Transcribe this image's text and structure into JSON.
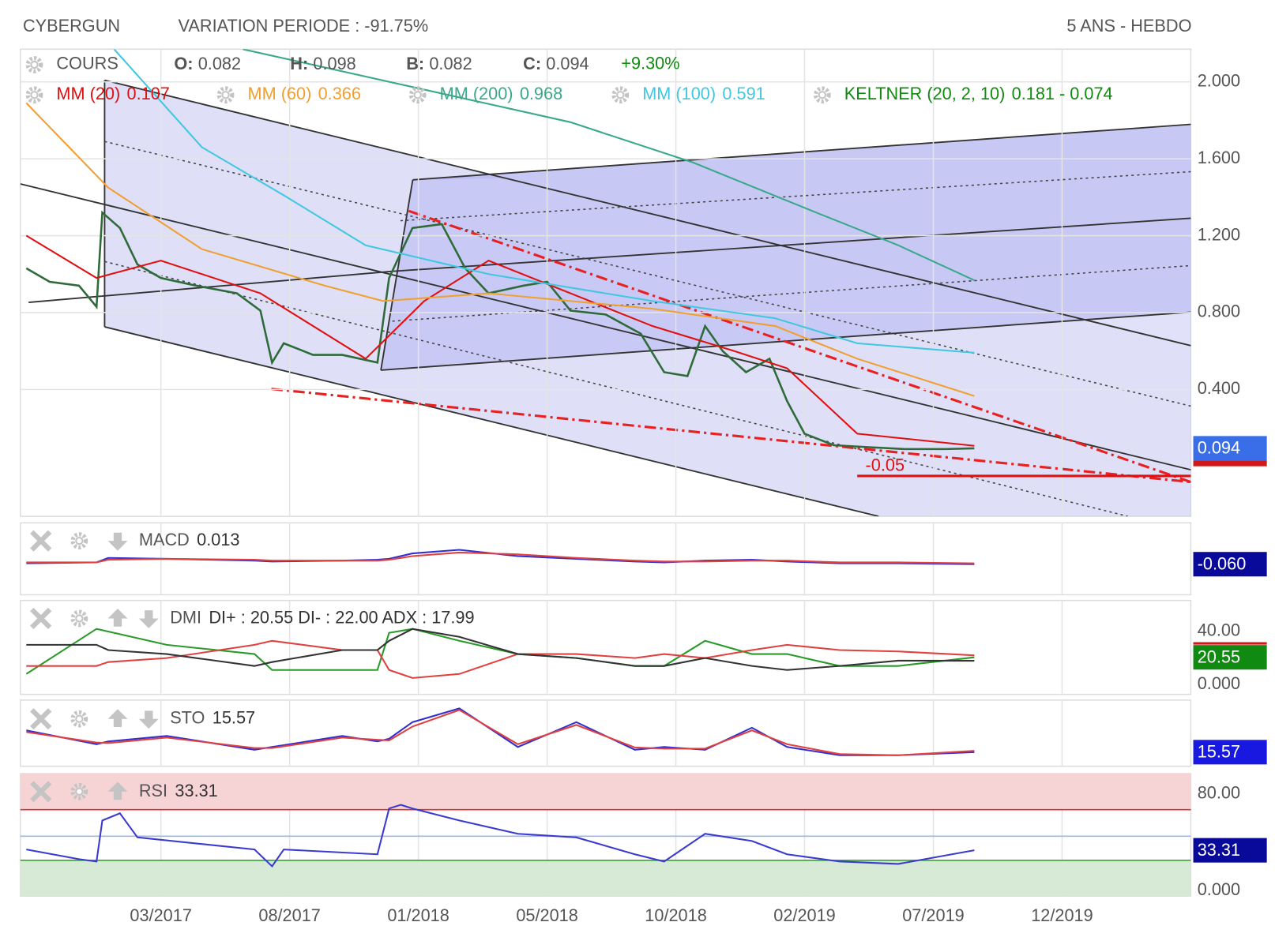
{
  "chart_data": [
    {
      "type": "line",
      "title": "CYBERGUN",
      "subtitle": "VARIATION PERIODE : -91.75%",
      "period": "5 ANS - HEBDO",
      "quotes": [
        {
          "key": "O:",
          "value": "0.082"
        },
        {
          "key": "H:",
          "value": "0.098"
        },
        {
          "key": "B:",
          "value": "0.082"
        },
        {
          "key": "C:",
          "value": "0.094"
        }
      ],
      "change": "+9.30%",
      "xlim": [
        0,
        200
      ],
      "xticks": [
        {
          "value": 24,
          "label": "03/2017"
        },
        {
          "value": 46,
          "label": "08/2017"
        },
        {
          "value": 68,
          "label": "01/2018"
        },
        {
          "value": 90,
          "label": "05/2018"
        },
        {
          "value": 112,
          "label": "10/2018"
        },
        {
          "value": 134,
          "label": "02/2019"
        },
        {
          "value": 156,
          "label": "07/2019"
        },
        {
          "value": 178,
          "label": "12/2019"
        }
      ],
      "ylim": [
        -0.26,
        2.17
      ],
      "yticks": [
        {
          "value": 0.4,
          "label": "0.400"
        },
        {
          "value": 0.8,
          "label": "0.800"
        },
        {
          "value": 1.2,
          "label": "1.200"
        },
        {
          "value": 1.6,
          "label": "1.600"
        },
        {
          "value": 2.0,
          "label": "2.000"
        }
      ],
      "grid": true,
      "series": [
        {
          "name": "COURS",
          "color": "#2f6b3a",
          "x": [
            1,
            5,
            10,
            13,
            14,
            17,
            20,
            24,
            30,
            37,
            41,
            43,
            45,
            50,
            55,
            61,
            63,
            65,
            67,
            72,
            76,
            80,
            86,
            90,
            94,
            100,
            106,
            110,
            114,
            117,
            120,
            124,
            128,
            131,
            134,
            139,
            145,
            151,
            158,
            163
          ],
          "values": [
            1.03,
            0.96,
            0.94,
            0.83,
            1.32,
            1.24,
            1.05,
            0.98,
            0.94,
            0.9,
            0.81,
            0.54,
            0.64,
            0.58,
            0.58,
            0.54,
            0.98,
            1.11,
            1.24,
            1.26,
            1.03,
            0.9,
            0.94,
            0.96,
            0.81,
            0.79,
            0.69,
            0.49,
            0.47,
            0.73,
            0.6,
            0.49,
            0.56,
            0.34,
            0.17,
            0.11,
            0.1,
            0.09,
            0.09,
            0.094
          ]
        },
        {
          "name": "MM (20)",
          "legend_value": "0.107",
          "color": "#e01010",
          "x": [
            1,
            13,
            24,
            41,
            59,
            69,
            80,
            94,
            108,
            122,
            131,
            143,
            163
          ],
          "values": [
            1.2,
            0.98,
            1.07,
            0.9,
            0.56,
            0.86,
            1.07,
            0.9,
            0.73,
            0.6,
            0.51,
            0.17,
            0.107
          ]
        },
        {
          "name": "MM (60)",
          "legend_value": "0.366",
          "color": "#f0a030",
          "x": [
            1,
            15,
            31,
            52,
            62,
            80,
            108,
            129,
            143,
            163
          ],
          "values": [
            1.89,
            1.45,
            1.13,
            0.94,
            0.86,
            0.9,
            0.82,
            0.73,
            0.56,
            0.366
          ]
        },
        {
          "name": "MM (200)",
          "legend_value": "0.968",
          "color": "#3aa88a",
          "x": [
            38,
            66,
            94,
            115,
            136,
            150,
            163
          ],
          "values": [
            2.17,
            1.98,
            1.79,
            1.58,
            1.32,
            1.15,
            0.968
          ]
        },
        {
          "name": "MM (100)",
          "legend_value": "0.591",
          "color": "#40c8e0",
          "x": [
            16,
            31,
            45,
            59,
            80,
            108,
            129,
            143,
            163
          ],
          "values": [
            2.17,
            1.66,
            1.41,
            1.15,
            1.0,
            0.86,
            0.77,
            0.64,
            0.591
          ]
        }
      ],
      "keltner": {
        "name": "KELTNER (20, 2, 10)",
        "value": "0.181 - 0.074",
        "color": "#108a10"
      },
      "annotation": {
        "label": "-0.05",
        "value": -0.05,
        "x_start": 143,
        "color": "#e01010"
      }
    },
    {
      "type": "line",
      "title": "MACD",
      "header_value": "0.013",
      "x": [
        1,
        13,
        15,
        25,
        40,
        43,
        55,
        61,
        63,
        67,
        75,
        85,
        95,
        105,
        110,
        117,
        125,
        131,
        140,
        150,
        163
      ],
      "ylim": [
        -0.4,
        0.4
      ],
      "series": [
        {
          "color": "#3030d0",
          "values": [
            -0.05,
            -0.04,
            0.01,
            0,
            -0.02,
            -0.03,
            -0.02,
            -0.01,
            0.0,
            0.06,
            0.1,
            0.03,
            0.0,
            -0.03,
            -0.04,
            -0.02,
            -0.01,
            -0.03,
            -0.05,
            -0.05,
            -0.06
          ]
        },
        {
          "color": "#e04040",
          "values": [
            -0.04,
            -0.04,
            -0.01,
            0,
            -0.01,
            -0.02,
            -0.02,
            -0.02,
            -0.01,
            0.03,
            0.07,
            0.05,
            0.01,
            -0.02,
            -0.03,
            -0.03,
            -0.02,
            -0.02,
            -0.04,
            -0.04,
            -0.05
          ]
        }
      ],
      "current": {
        "value": -0.06,
        "label": "-0.060"
      }
    },
    {
      "type": "line",
      "title": "DMI",
      "header_value": "DI+ : 20.55 DI- : 22.00 ADX : 17.99",
      "x": [
        1,
        13,
        15,
        25,
        40,
        43,
        55,
        61,
        63,
        67,
        75,
        85,
        95,
        105,
        110,
        117,
        125,
        131,
        140,
        150,
        163
      ],
      "ylim": [
        -7.4,
        63.4
      ],
      "yticks": [
        {
          "value": 0,
          "label": "0.000"
        },
        {
          "value": 40,
          "label": "40.00"
        }
      ],
      "series": [
        {
          "name": "DI+",
          "color": "#2a9a2a",
          "values": [
            8,
            42,
            40,
            30,
            23,
            11,
            11,
            11,
            39,
            42,
            33,
            23,
            20,
            14,
            14,
            33,
            23,
            23,
            14,
            14,
            20.55
          ]
        },
        {
          "name": "DI-",
          "color": "#e04040",
          "values": [
            14,
            14,
            17,
            20,
            30,
            33,
            26,
            26,
            11,
            5,
            8,
            23,
            23,
            20,
            23,
            20,
            26,
            30,
            26,
            25,
            22
          ]
        },
        {
          "name": "ADX",
          "color": "#333333",
          "values": [
            30,
            30,
            26,
            23,
            14,
            17,
            26,
            26,
            33,
            42,
            36,
            23,
            20,
            14,
            14,
            20,
            14,
            11,
            14,
            18,
            17.99
          ]
        }
      ]
    },
    {
      "type": "line",
      "title": "STO",
      "header_value": "15.57",
      "x": [
        1,
        13,
        15,
        25,
        40,
        43,
        55,
        61,
        63,
        67,
        75,
        85,
        95,
        105,
        110,
        117,
        125,
        131,
        140,
        150,
        163
      ],
      "ylim": [
        -10,
        110
      ],
      "series": [
        {
          "color": "#3030d0",
          "values": [
            55,
            30,
            35,
            45,
            20,
            25,
            45,
            35,
            40,
            70,
            95,
            25,
            70,
            20,
            25,
            20,
            60,
            25,
            10,
            10,
            15.57
          ]
        },
        {
          "color": "#e04040",
          "values": [
            52,
            33,
            32,
            42,
            23,
            23,
            42,
            38,
            37,
            62,
            92,
            30,
            65,
            24,
            22,
            22,
            55,
            30,
            12,
            10,
            18
          ]
        }
      ]
    },
    {
      "type": "line",
      "title": "RSI",
      "header_value": "33.31",
      "ylim": [
        -4.7,
        96.9
      ],
      "yticks": [
        {
          "value": 0,
          "label": "0.000"
        },
        {
          "value": 80,
          "label": "80.00"
        }
      ],
      "levels": [
        {
          "value": 67,
          "color": "#e03030"
        },
        {
          "value": 45,
          "color": "#9ab8ea"
        },
        {
          "value": 25,
          "color": "#2a9a2a"
        }
      ],
      "series": [
        {
          "color": "#3a3ad0",
          "x": [
            1,
            10,
            13,
            14,
            17,
            20,
            40,
            43,
            45,
            61,
            63,
            65,
            67,
            75,
            85,
            95,
            105,
            110,
            117,
            125,
            131,
            140,
            150,
            163
          ],
          "values": [
            34,
            26,
            24,
            58,
            64,
            44,
            34,
            20,
            34,
            30,
            68,
            71,
            68,
            58,
            47,
            44,
            30,
            24,
            47,
            41,
            30,
            24,
            22,
            33.31
          ]
        }
      ]
    }
  ]
}
